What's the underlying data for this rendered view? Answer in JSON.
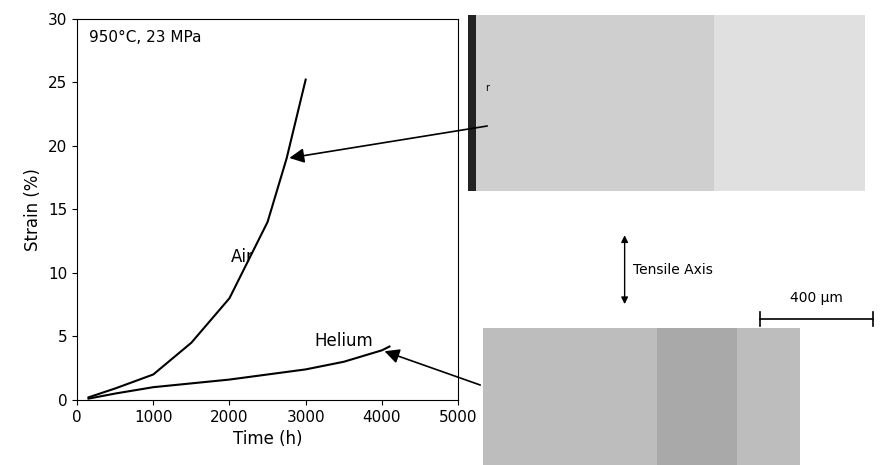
{
  "chart_data": {
    "type": "line",
    "x_label": "Time (h)",
    "y_label": "Strain (%)",
    "xlim": [
      0,
      5000
    ],
    "xticks": [
      0,
      1000,
      2000,
      3000,
      4000,
      5000
    ],
    "ylim": [
      0,
      30
    ],
    "yticks": [
      0,
      5,
      10,
      15,
      20,
      25,
      30
    ],
    "grid": false,
    "series": [
      {
        "name": "Air",
        "color": "#000000",
        "x": [
          150,
          500,
          1000,
          1500,
          2000,
          2500,
          2750,
          3000
        ],
        "values": [
          0.2,
          0.9,
          2.0,
          4.5,
          8.0,
          14.0,
          19.0,
          25.2
        ]
      },
      {
        "name": "Helium",
        "color": "#000000",
        "x": [
          150,
          500,
          1000,
          1500,
          2000,
          2500,
          3000,
          3500,
          4000,
          4100
        ],
        "values": [
          0.1,
          0.5,
          1.0,
          1.3,
          1.6,
          2.0,
          2.4,
          3.0,
          3.9,
          4.2
        ]
      }
    ],
    "annotations": [
      {
        "text": "950°C, 23 MPa"
      },
      {
        "text": "Tensile Axis"
      },
      {
        "text": "400 μm"
      },
      {
        "text": "r"
      }
    ]
  }
}
